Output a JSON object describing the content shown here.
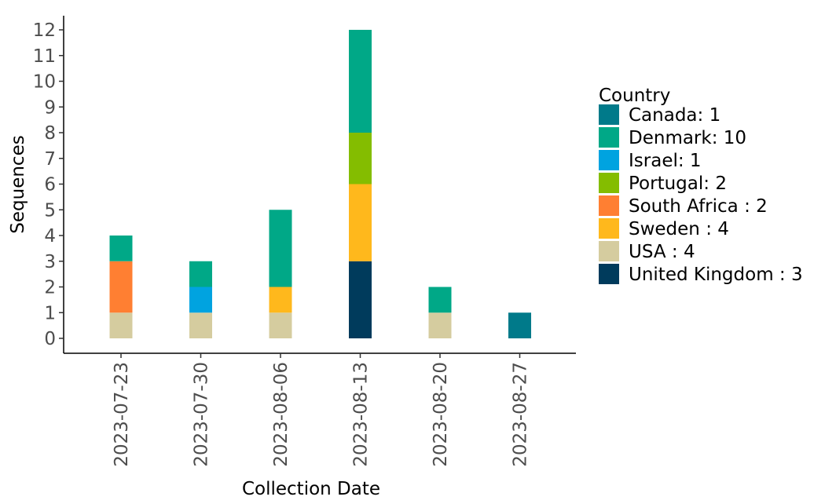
{
  "chart_data": {
    "type": "bar",
    "stacked": true,
    "title": "",
    "xlabel": "Collection Date",
    "ylabel": "Sequences",
    "ylim": [
      0,
      12
    ],
    "yticks": [
      "0",
      "1",
      "2",
      "3",
      "4",
      "5",
      "6",
      "7",
      "8",
      "9",
      "10",
      "11",
      "12"
    ],
    "categories": [
      "2023-07-23",
      "2023-07-30",
      "2023-08-06",
      "2023-08-13",
      "2023-08-20",
      "2023-08-27"
    ],
    "series": [
      {
        "name": "USA",
        "color": "#d5cc9f",
        "values": [
          1,
          1,
          1,
          0,
          1,
          0
        ]
      },
      {
        "name": "United Kingdom",
        "color": "#003b5c",
        "values": [
          0,
          0,
          0,
          3,
          0,
          0
        ]
      },
      {
        "name": "South Africa",
        "color": "#ff7f32",
        "values": [
          2,
          0,
          0,
          0,
          0,
          0
        ]
      },
      {
        "name": "Israel",
        "color": "#00a3e0",
        "values": [
          0,
          1,
          0,
          0,
          0,
          0
        ]
      },
      {
        "name": "Sweden",
        "color": "#ffb81c",
        "values": [
          0,
          0,
          1,
          3,
          0,
          0
        ]
      },
      {
        "name": "Portugal",
        "color": "#84bd00",
        "values": [
          0,
          0,
          0,
          2,
          0,
          0
        ]
      },
      {
        "name": "Denmark",
        "color": "#00a887",
        "values": [
          1,
          1,
          3,
          4,
          1,
          0
        ]
      },
      {
        "name": "Canada",
        "color": "#007a8a",
        "values": [
          0,
          0,
          0,
          0,
          0,
          1
        ]
      }
    ],
    "legend": {
      "title": "Country",
      "position": "right",
      "entries": [
        {
          "label": "Canada: 1",
          "color": "#007a8a"
        },
        {
          "label": "Denmark: 10",
          "color": "#00a887"
        },
        {
          "label": "Israel: 1",
          "color": "#00a3e0"
        },
        {
          "label": "Portugal: 2",
          "color": "#84bd00"
        },
        {
          "label": "South Africa : 2",
          "color": "#ff7f32"
        },
        {
          "label": "Sweden : 4",
          "color": "#ffb81c"
        },
        {
          "label": "USA : 4",
          "color": "#d5cc9f"
        },
        {
          "label": "United Kingdom : 3",
          "color": "#003b5c"
        }
      ]
    }
  }
}
